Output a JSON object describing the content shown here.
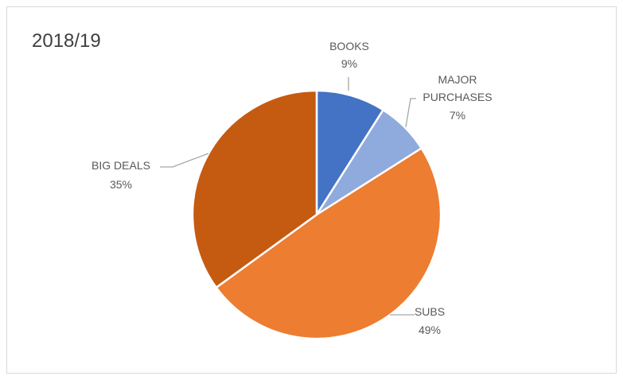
{
  "chart_data": {
    "type": "pie",
    "title": "2018/19",
    "categories": [
      "BOOKS",
      "MAJOR PURCHASES",
      "SUBS",
      "BIG DEALS"
    ],
    "values": [
      9,
      7,
      49,
      35
    ],
    "value_labels": [
      "9%",
      "7%",
      "49%",
      "35%"
    ],
    "colors": [
      "#4472c4",
      "#8faadc",
      "#ed7d31",
      "#c55a11"
    ],
    "start_angle_deg": 0,
    "direction": "clockwise",
    "legend": "none",
    "label_style": "category name and percentage with leader lines"
  }
}
